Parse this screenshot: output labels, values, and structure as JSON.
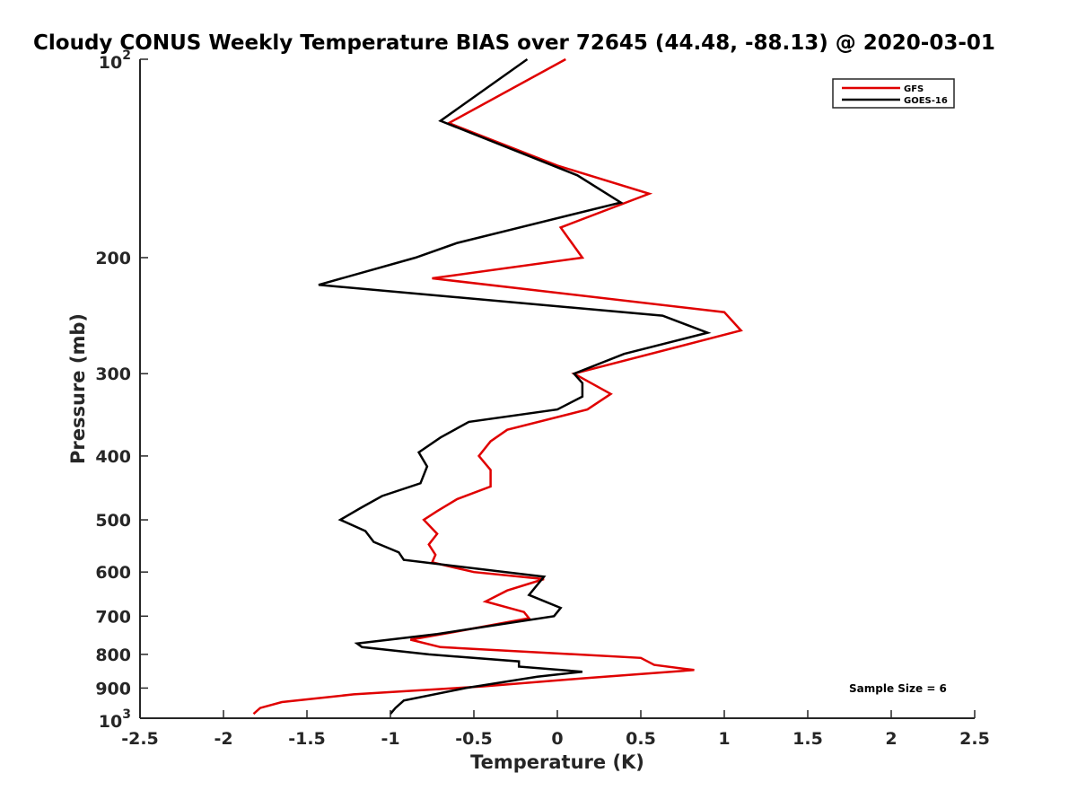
{
  "chart_data": {
    "type": "line",
    "title": "Cloudy CONUS Weekly Temperature BIAS over 72645 (44.48, -88.13) @ 2020-03-01",
    "xlabel": "Temperature (K)",
    "ylabel": "Pressure (mb)",
    "xlim": [
      -2.5,
      2.5
    ],
    "ylim": [
      100,
      1000
    ],
    "y_scale": "log",
    "y_reversed": true,
    "grid": false,
    "legend_position": "top-right",
    "x_ticks": [
      "-2.5",
      "-2",
      "-1.5",
      "-1",
      "-0.5",
      "0",
      "0.5",
      "1",
      "1.5",
      "2",
      "2.5"
    ],
    "y_ticks": [
      {
        "value": 100,
        "base": "10",
        "exp": "2"
      },
      {
        "value": 200,
        "label": "200"
      },
      {
        "value": 300,
        "label": "300"
      },
      {
        "value": 400,
        "label": "400"
      },
      {
        "value": 500,
        "label": "500"
      },
      {
        "value": 600,
        "label": "600"
      },
      {
        "value": 700,
        "label": "700"
      },
      {
        "value": 800,
        "label": "800"
      },
      {
        "value": 900,
        "label": "900"
      },
      {
        "value": 1000,
        "base": "10",
        "exp": "3"
      }
    ],
    "annotation": "Sample Size = 6",
    "series": [
      {
        "name": "GFS",
        "color": "#e00000",
        "points": [
          [
            0.05,
            100
          ],
          [
            -0.65,
            125
          ],
          [
            0.0,
            145
          ],
          [
            0.55,
            160
          ],
          [
            0.02,
            180
          ],
          [
            0.15,
            200
          ],
          [
            -0.75,
            215
          ],
          [
            1.0,
            242
          ],
          [
            1.1,
            258
          ],
          [
            0.1,
            300
          ],
          [
            0.32,
            322
          ],
          [
            0.18,
            340
          ],
          [
            -0.3,
            365
          ],
          [
            -0.4,
            380
          ],
          [
            -0.47,
            400
          ],
          [
            -0.4,
            420
          ],
          [
            -0.4,
            445
          ],
          [
            -0.6,
            465
          ],
          [
            -0.72,
            485
          ],
          [
            -0.8,
            500
          ],
          [
            -0.72,
            525
          ],
          [
            -0.77,
            545
          ],
          [
            -0.73,
            565
          ],
          [
            -0.75,
            580
          ],
          [
            -0.5,
            600
          ],
          [
            -0.08,
            615
          ],
          [
            -0.3,
            640
          ],
          [
            -0.43,
            665
          ],
          [
            -0.2,
            690
          ],
          [
            -0.17,
            705
          ],
          [
            -0.62,
            740
          ],
          [
            -0.88,
            760
          ],
          [
            -0.7,
            780
          ],
          [
            0.5,
            810
          ],
          [
            0.58,
            830
          ],
          [
            0.82,
            845
          ],
          [
            0.15,
            870
          ],
          [
            -0.45,
            895
          ],
          [
            -1.22,
            920
          ],
          [
            -1.65,
            945
          ],
          [
            -1.78,
            965
          ],
          [
            -1.82,
            985
          ]
        ]
      },
      {
        "name": "GOES-16",
        "color": "#000000",
        "points": [
          [
            -0.18,
            100
          ],
          [
            -0.7,
            124
          ],
          [
            0.12,
            150
          ],
          [
            0.38,
            165
          ],
          [
            -0.6,
            190
          ],
          [
            -0.85,
            200
          ],
          [
            -1.43,
            220
          ],
          [
            0.63,
            245
          ],
          [
            0.9,
            260
          ],
          [
            0.4,
            280
          ],
          [
            0.1,
            300
          ],
          [
            0.15,
            310
          ],
          [
            0.15,
            325
          ],
          [
            0.0,
            340
          ],
          [
            -0.53,
            355
          ],
          [
            -0.7,
            375
          ],
          [
            -0.83,
            395
          ],
          [
            -0.78,
            415
          ],
          [
            -0.82,
            440
          ],
          [
            -1.05,
            460
          ],
          [
            -1.18,
            480
          ],
          [
            -1.3,
            500
          ],
          [
            -1.15,
            520
          ],
          [
            -1.1,
            540
          ],
          [
            -0.95,
            560
          ],
          [
            -0.92,
            575
          ],
          [
            -0.08,
            610
          ],
          [
            -0.17,
            650
          ],
          [
            0.02,
            680
          ],
          [
            -0.02,
            700
          ],
          [
            -0.72,
            745
          ],
          [
            -1.2,
            770
          ],
          [
            -1.17,
            780
          ],
          [
            -0.77,
            800
          ],
          [
            -0.23,
            820
          ],
          [
            -0.23,
            835
          ],
          [
            0.15,
            850
          ],
          [
            -0.12,
            865
          ],
          [
            -0.55,
            900
          ],
          [
            -0.92,
            940
          ],
          [
            -0.97,
            965
          ],
          [
            -1.0,
            985
          ]
        ]
      }
    ]
  }
}
